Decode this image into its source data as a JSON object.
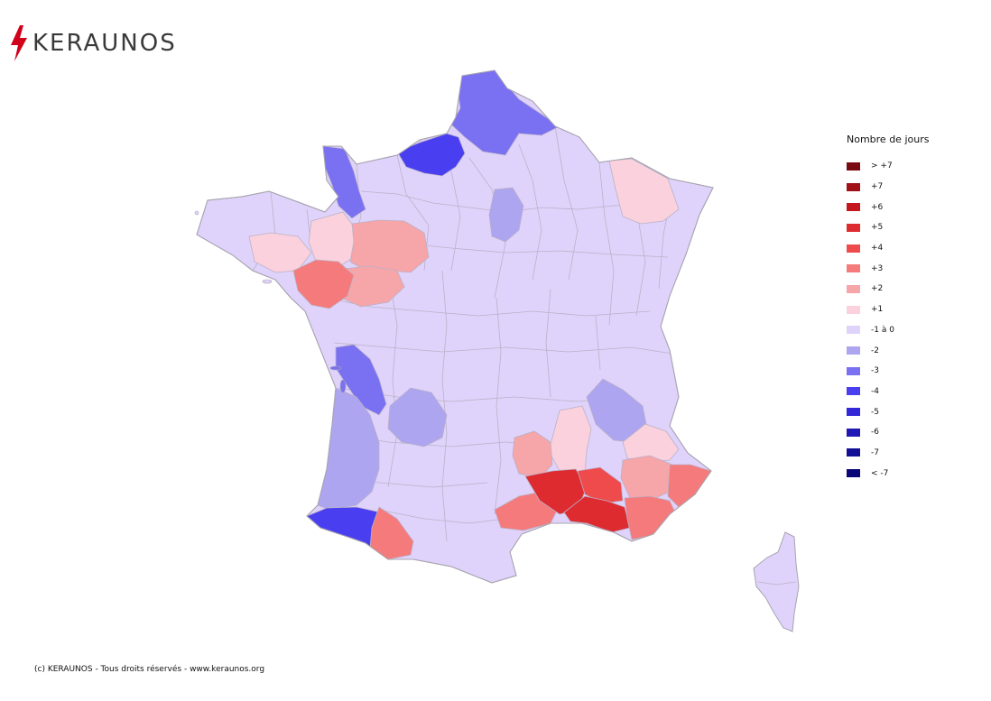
{
  "brand": {
    "name": "KERAUNOS",
    "color": "#d0021b",
    "icon": "lightning-bolt-icon"
  },
  "legend": {
    "title": "Nombre de jours",
    "items": [
      {
        "label": "> +7",
        "color": "#7a0a12"
      },
      {
        "label": "+7",
        "color": "#a01016"
      },
      {
        "label": "+6",
        "color": "#c4161c"
      },
      {
        "label": "+5",
        "color": "#de2b30"
      },
      {
        "label": "+4",
        "color": "#ef4a4c"
      },
      {
        "label": "+3",
        "color": "#f57a7b"
      },
      {
        "label": "+2",
        "color": "#f6a5a8"
      },
      {
        "label": "+1",
        "color": "#fad1dc"
      },
      {
        "label": "-1 à 0",
        "color": "#e0d3fb"
      },
      {
        "label": "-2",
        "color": "#ada5ef"
      },
      {
        "label": "-3",
        "color": "#7a70f2"
      },
      {
        "label": "-4",
        "color": "#4a3ff0"
      },
      {
        "label": "-5",
        "color": "#3228d8"
      },
      {
        "label": "-6",
        "color": "#2018b5"
      },
      {
        "label": "-7",
        "color": "#130f95"
      },
      {
        "label": "< -7",
        "color": "#0a0878"
      }
    ]
  },
  "footer": {
    "text": "(c) KERAUNOS - Tous droits réservés - www.keraunos.org"
  }
}
